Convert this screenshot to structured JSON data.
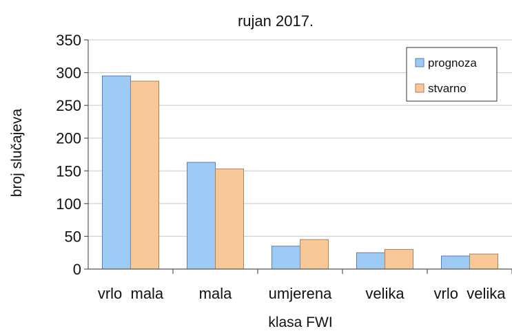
{
  "chart_data": {
    "type": "bar",
    "title": "rujan 2017.",
    "xlabel": "klasa FWI",
    "ylabel": "broj slučajeva",
    "categories": [
      "vrlo  mala",
      "mala",
      "umjerena",
      "velika",
      "vrlo  velika"
    ],
    "series": [
      {
        "name": "prognoza",
        "values": [
          295,
          163,
          35,
          25,
          20
        ],
        "color": "#9ecbf5",
        "stroke": "#5a7fa8"
      },
      {
        "name": "stvarno",
        "values": [
          287,
          153,
          45,
          30,
          23
        ],
        "color": "#f9c898",
        "stroke": "#a9825a"
      }
    ],
    "ylim": [
      0,
      350
    ],
    "yticks": [
      0,
      50,
      100,
      150,
      200,
      250,
      300,
      350
    ],
    "grid": true,
    "legend_position": "top-right"
  }
}
